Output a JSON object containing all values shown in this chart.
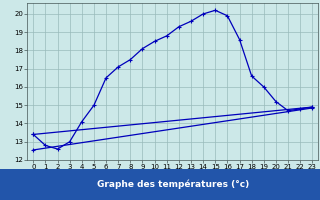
{
  "xlabel": "Graphe des températures (°c)",
  "background_color": "#cce8e8",
  "grid_color": "#99bbbb",
  "line_color": "#0000bb",
  "xlabel_bg": "#2255aa",
  "xlim": [
    -0.5,
    23.5
  ],
  "ylim": [
    12,
    20.6
  ],
  "yticks": [
    12,
    13,
    14,
    15,
    16,
    17,
    18,
    19,
    20
  ],
  "xticks": [
    0,
    1,
    2,
    3,
    4,
    5,
    6,
    7,
    8,
    9,
    10,
    11,
    12,
    13,
    14,
    15,
    16,
    17,
    18,
    19,
    20,
    21,
    22,
    23
  ],
  "temp_x": [
    0,
    1,
    2,
    3,
    4,
    5,
    6,
    7,
    8,
    9,
    10,
    11,
    12,
    13,
    14,
    15,
    16,
    17,
    18,
    19,
    20,
    21,
    22,
    23
  ],
  "temp_y": [
    13.4,
    12.8,
    12.6,
    13.0,
    14.1,
    15.0,
    16.5,
    17.1,
    17.5,
    18.1,
    18.5,
    18.8,
    19.3,
    19.6,
    20.0,
    20.2,
    19.9,
    18.6,
    16.6,
    16.0,
    15.2,
    14.7,
    14.8,
    14.9
  ],
  "line2_x": [
    0,
    23
  ],
  "line2_y": [
    13.4,
    14.9
  ],
  "line3_x": [
    0,
    23
  ],
  "line3_y": [
    12.55,
    14.85
  ]
}
